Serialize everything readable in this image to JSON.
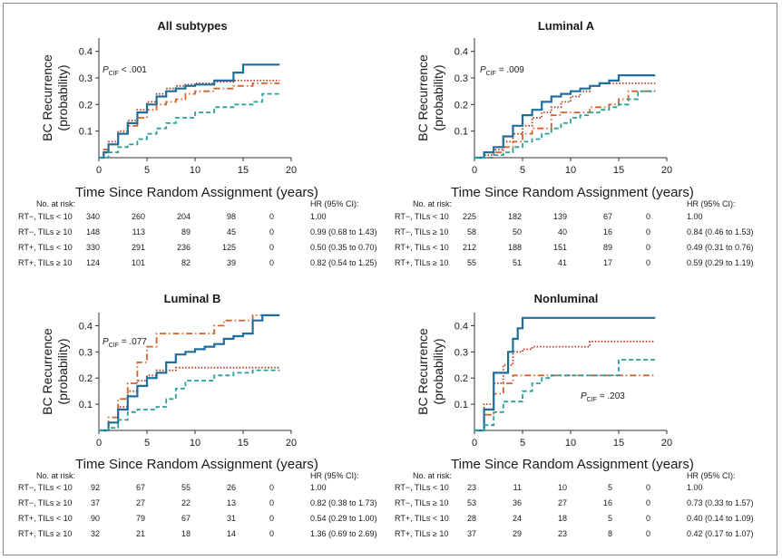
{
  "colors": {
    "rt_minus_tils_lt10": "#b33a1f",
    "rt_minus_tils_ge10": "#d4622b",
    "rt_plus_tils_lt10": "#1f6e9c",
    "rt_plus_tils_ge10": "#2aa198",
    "axis": "#333333"
  },
  "common": {
    "ylabel_line1": "BC Recurrence",
    "ylabel_line2": "(probability)",
    "xlabel": "Time Since Random Assignment (years)",
    "at_risk_label": "No. at risk:",
    "hr_header": "HR (95% CI):"
  },
  "chart_data": [
    {
      "type": "line",
      "title": "All subtypes",
      "pvalue": "P",
      "pvalue_sub": "CIF",
      "pvalue_text": "< .001",
      "xlabel": "Time Since Random Assignment (years)",
      "ylabel": "BC Recurrence (probability)",
      "xlim": [
        0,
        20
      ],
      "ylim": [
        0,
        0.45
      ],
      "xticks": [
        "0",
        "5",
        "10",
        "15",
        "20"
      ],
      "yticks": [
        "0.1",
        "0.2",
        "0.3",
        "0.4"
      ],
      "series": [
        {
          "name": "RT−, TILs < 10",
          "style": "dotted",
          "color": "#b33a1f",
          "x": [
            0,
            0.5,
            1,
            2,
            3,
            4,
            5,
            6,
            7,
            8,
            9,
            10,
            12,
            14,
            16,
            18.8
          ],
          "y": [
            0,
            0.03,
            0.06,
            0.1,
            0.14,
            0.18,
            0.21,
            0.24,
            0.26,
            0.27,
            0.275,
            0.28,
            0.285,
            0.29,
            0.29,
            0.29
          ]
        },
        {
          "name": "RT−, TILs ≥ 10",
          "style": "dashdot",
          "color": "#d4622b",
          "x": [
            0,
            0.5,
            1,
            2,
            3,
            4,
            5,
            6,
            7,
            8,
            9,
            10,
            12,
            14,
            16,
            18.8
          ],
          "y": [
            0,
            0.03,
            0.05,
            0.09,
            0.12,
            0.15,
            0.18,
            0.2,
            0.21,
            0.22,
            0.24,
            0.25,
            0.26,
            0.27,
            0.28,
            0.28
          ]
        },
        {
          "name": "RT+, TILs < 10",
          "style": "solid",
          "color": "#1f6e9c",
          "x": [
            0,
            0.5,
            1,
            2,
            3,
            4,
            5,
            6,
            7,
            8,
            9,
            10,
            12,
            14,
            15,
            18.8
          ],
          "y": [
            0,
            0.02,
            0.05,
            0.09,
            0.13,
            0.17,
            0.2,
            0.23,
            0.25,
            0.26,
            0.27,
            0.275,
            0.29,
            0.32,
            0.35,
            0.35
          ]
        },
        {
          "name": "RT+, TILs ≥ 10",
          "style": "dashed",
          "color": "#2aa198",
          "x": [
            0,
            1,
            2,
            3,
            4,
            5,
            6,
            7,
            8,
            10,
            12,
            14,
            16,
            17,
            18.8
          ],
          "y": [
            0,
            0.02,
            0.04,
            0.05,
            0.07,
            0.09,
            0.11,
            0.13,
            0.15,
            0.17,
            0.19,
            0.2,
            0.21,
            0.24,
            0.24
          ]
        }
      ],
      "table": [
        {
          "label": "RT−, TILs < 10",
          "counts": [
            "340",
            "260",
            "204",
            "98",
            "0"
          ],
          "hr": "1.00"
        },
        {
          "label": "RT−, TILs ≥ 10",
          "counts": [
            "148",
            "113",
            "89",
            "45",
            "0"
          ],
          "hr": "0.99 (0.68 to 1.43)"
        },
        {
          "label": "RT+, TILs < 10",
          "counts": [
            "330",
            "291",
            "236",
            "125",
            "0"
          ],
          "hr": "0.50 (0.35 to 0.70)"
        },
        {
          "label": "RT+, TILs ≥ 10",
          "counts": [
            "124",
            "101",
            "82",
            "39",
            "0"
          ],
          "hr": "0.82 (0.54 to 1.25)"
        }
      ]
    },
    {
      "type": "line",
      "title": "Luminal A",
      "pvalue": "P",
      "pvalue_sub": "CIF",
      "pvalue_text": "= .009",
      "xlabel": "Time Since Random Assignment (years)",
      "ylabel": "BC Recurrence (probability)",
      "xlim": [
        0,
        20
      ],
      "ylim": [
        0,
        0.45
      ],
      "xticks": [
        "0",
        "5",
        "10",
        "15",
        "20"
      ],
      "yticks": [
        "0.1",
        "0.2",
        "0.3",
        "0.4"
      ],
      "series": [
        {
          "name": "RT−, TILs < 10",
          "style": "dotted",
          "color": "#b33a1f",
          "x": [
            0,
            1,
            2,
            3,
            4,
            5,
            6,
            7,
            8,
            9,
            10,
            11,
            12,
            13,
            14,
            15,
            18.8
          ],
          "y": [
            0,
            0.01,
            0.03,
            0.06,
            0.09,
            0.12,
            0.15,
            0.17,
            0.19,
            0.21,
            0.23,
            0.25,
            0.27,
            0.28,
            0.28,
            0.28,
            0.28
          ]
        },
        {
          "name": "RT−, TILs ≥ 10",
          "style": "dashdot",
          "color": "#d4622b",
          "x": [
            0,
            2,
            3,
            4,
            5,
            6,
            7,
            8,
            9,
            10,
            12,
            14,
            15,
            16,
            18.8
          ],
          "y": [
            0,
            0.02,
            0.04,
            0.06,
            0.09,
            0.11,
            0.11,
            0.16,
            0.17,
            0.17,
            0.19,
            0.2,
            0.22,
            0.25,
            0.25
          ]
        },
        {
          "name": "RT+, TILs < 10",
          "style": "solid",
          "color": "#1f6e9c",
          "x": [
            0,
            1,
            2,
            3,
            4,
            5,
            6,
            7,
            8,
            9,
            10,
            11,
            12,
            13,
            14,
            15,
            18.8
          ],
          "y": [
            0,
            0.02,
            0.04,
            0.08,
            0.12,
            0.16,
            0.18,
            0.21,
            0.23,
            0.24,
            0.25,
            0.26,
            0.27,
            0.28,
            0.29,
            0.31,
            0.31
          ]
        },
        {
          "name": "RT+, TILs ≥ 10",
          "style": "dashed",
          "color": "#2aa198",
          "x": [
            0,
            2,
            3,
            4,
            5,
            6,
            7,
            8,
            9,
            10,
            11,
            12,
            13,
            14,
            15,
            16,
            17,
            18.8
          ],
          "y": [
            0,
            0.01,
            0.02,
            0.04,
            0.06,
            0.07,
            0.09,
            0.11,
            0.13,
            0.15,
            0.16,
            0.17,
            0.18,
            0.19,
            0.2,
            0.22,
            0.25,
            0.25
          ]
        }
      ],
      "table": [
        {
          "label": "RT−, TILs < 10",
          "counts": [
            "225",
            "182",
            "139",
            "67",
            "0"
          ],
          "hr": "1.00"
        },
        {
          "label": "RT−, TILs ≥ 10",
          "counts": [
            "58",
            "50",
            "40",
            "16",
            "0"
          ],
          "hr": "0.84 (0.46 to 1.53)"
        },
        {
          "label": "RT+, TILs < 10",
          "counts": [
            "212",
            "188",
            "151",
            "89",
            "0"
          ],
          "hr": "0.49 (0.31 to 0.76)"
        },
        {
          "label": "RT+, TILs ≥ 10",
          "counts": [
            "55",
            "51",
            "41",
            "17",
            "0"
          ],
          "hr": "0.59 (0.29 to 1.19)"
        }
      ]
    },
    {
      "type": "line",
      "title": "Luminal B",
      "pvalue": "P",
      "pvalue_sub": "CIF",
      "pvalue_text": "= .077",
      "xlabel": "Time Since Random Assignment (years)",
      "ylabel": "BC Recurrence (probability)",
      "xlim": [
        0,
        20
      ],
      "ylim": [
        0,
        0.45
      ],
      "xticks": [
        "0",
        "5",
        "10",
        "15",
        "20"
      ],
      "yticks": [
        "0.1",
        "0.2",
        "0.3",
        "0.4"
      ],
      "series": [
        {
          "name": "RT−, TILs < 10",
          "style": "dotted",
          "color": "#b33a1f",
          "x": [
            0,
            1,
            2,
            3,
            4,
            5,
            6,
            8,
            10,
            12,
            14,
            16,
            18.8
          ],
          "y": [
            0,
            0.03,
            0.09,
            0.15,
            0.19,
            0.21,
            0.23,
            0.24,
            0.24,
            0.24,
            0.24,
            0.24,
            0.24
          ]
        },
        {
          "name": "RT−, TILs ≥ 10",
          "style": "dashdot",
          "color": "#d4622b",
          "x": [
            0,
            1,
            2,
            3,
            4,
            5,
            6,
            7,
            8,
            10,
            12,
            13,
            14,
            16,
            18.8
          ],
          "y": [
            0,
            0.05,
            0.12,
            0.18,
            0.26,
            0.32,
            0.37,
            0.37,
            0.37,
            0.37,
            0.4,
            0.42,
            0.42,
            0.44,
            0.44
          ]
        },
        {
          "name": "RT+, TILs < 10",
          "style": "solid",
          "color": "#1f6e9c",
          "x": [
            0,
            1,
            2,
            3,
            4,
            5,
            6,
            7,
            8,
            9,
            10,
            11,
            12,
            13,
            14,
            15,
            16,
            17,
            18.8
          ],
          "y": [
            0,
            0.03,
            0.08,
            0.13,
            0.17,
            0.2,
            0.22,
            0.26,
            0.29,
            0.3,
            0.31,
            0.32,
            0.33,
            0.35,
            0.36,
            0.37,
            0.42,
            0.44,
            0.44
          ]
        },
        {
          "name": "RT+, TILs ≥ 10",
          "style": "dashed",
          "color": "#2aa198",
          "x": [
            0,
            1,
            2,
            3,
            4,
            5,
            6,
            7,
            8,
            9,
            10,
            12,
            14,
            16,
            18.8
          ],
          "y": [
            0,
            0.01,
            0.04,
            0.07,
            0.08,
            0.08,
            0.09,
            0.12,
            0.16,
            0.19,
            0.19,
            0.21,
            0.22,
            0.23,
            0.23
          ]
        }
      ],
      "table": [
        {
          "label": "RT−, TILs < 10",
          "counts": [
            "92",
            "67",
            "55",
            "26",
            "0"
          ],
          "hr": "1.00"
        },
        {
          "label": "RT−, TILs ≥ 10",
          "counts": [
            "37",
            "27",
            "22",
            "13",
            "0"
          ],
          "hr": "0.82 (0.38 to 1.73)"
        },
        {
          "label": "RT+, TILs < 10",
          "counts": [
            "90",
            "79",
            "67",
            "31",
            "0"
          ],
          "hr": "0.54 (0.29 to 1.00)"
        },
        {
          "label": "RT+, TILs ≥ 10",
          "counts": [
            "32",
            "21",
            "18",
            "14",
            "0"
          ],
          "hr": "1.36 (0.69 to 2.69)"
        }
      ]
    },
    {
      "type": "line",
      "title": "Nonluminal",
      "pvalue": "P",
      "pvalue_sub": "CIF",
      "pvalue_text": "= .203",
      "xlabel": "Time Since Random Assignment (years)",
      "ylabel": "BC Recurrence (probability)",
      "xlim": [
        0,
        20
      ],
      "ylim": [
        0,
        0.45
      ],
      "xticks": [
        "0",
        "5",
        "10",
        "15",
        "20"
      ],
      "yticks": [
        "0.1",
        "0.2",
        "0.3",
        "0.4"
      ],
      "series": [
        {
          "name": "RT−, TILs < 10",
          "style": "dotted",
          "color": "#b33a1f",
          "x": [
            0,
            1,
            2,
            3,
            4,
            5,
            6,
            8,
            10,
            12,
            14,
            18.8
          ],
          "y": [
            0,
            0.1,
            0.18,
            0.25,
            0.3,
            0.31,
            0.32,
            0.32,
            0.32,
            0.34,
            0.34,
            0.34
          ]
        },
        {
          "name": "RT−, TILs ≥ 10",
          "style": "dashdot",
          "color": "#d4622b",
          "x": [
            0,
            1,
            2,
            3,
            4,
            5,
            8,
            10,
            12,
            14,
            16,
            18.8
          ],
          "y": [
            0,
            0.06,
            0.14,
            0.18,
            0.21,
            0.21,
            0.21,
            0.21,
            0.21,
            0.21,
            0.21,
            0.21
          ]
        },
        {
          "name": "RT+, TILs < 10",
          "style": "solid",
          "color": "#1f6e9c",
          "x": [
            0,
            1,
            2,
            3,
            3.5,
            4,
            4.5,
            5,
            6,
            8,
            10,
            14,
            18.8
          ],
          "y": [
            0,
            0.08,
            0.22,
            0.22,
            0.3,
            0.35,
            0.39,
            0.43,
            0.43,
            0.43,
            0.43,
            0.43,
            0.43
          ]
        },
        {
          "name": "RT+, TILs ≥ 10",
          "style": "dashed",
          "color": "#2aa198",
          "x": [
            0,
            1,
            2,
            3,
            5,
            6,
            7,
            8,
            10,
            12,
            14,
            15,
            18.8
          ],
          "y": [
            0,
            0.02,
            0.07,
            0.11,
            0.15,
            0.18,
            0.2,
            0.21,
            0.21,
            0.21,
            0.21,
            0.27,
            0.27
          ]
        }
      ],
      "table": [
        {
          "label": "RT−, TILs < 10",
          "counts": [
            "23",
            "11",
            "10",
            "5",
            "0"
          ],
          "hr": "1.00"
        },
        {
          "label": "RT−, TILs ≥ 10",
          "counts": [
            "53",
            "36",
            "27",
            "16",
            "0"
          ],
          "hr": "0.73 (0.33 to 1.57)"
        },
        {
          "label": "RT+, TILs < 10",
          "counts": [
            "28",
            "24",
            "18",
            "5",
            "0"
          ],
          "hr": "0.40 (0.14 to 1.09)"
        },
        {
          "label": "RT+, TILs ≥ 10",
          "counts": [
            "37",
            "29",
            "23",
            "8",
            "0"
          ],
          "hr": "0.42 (0.17 to 1.07)"
        }
      ]
    }
  ]
}
